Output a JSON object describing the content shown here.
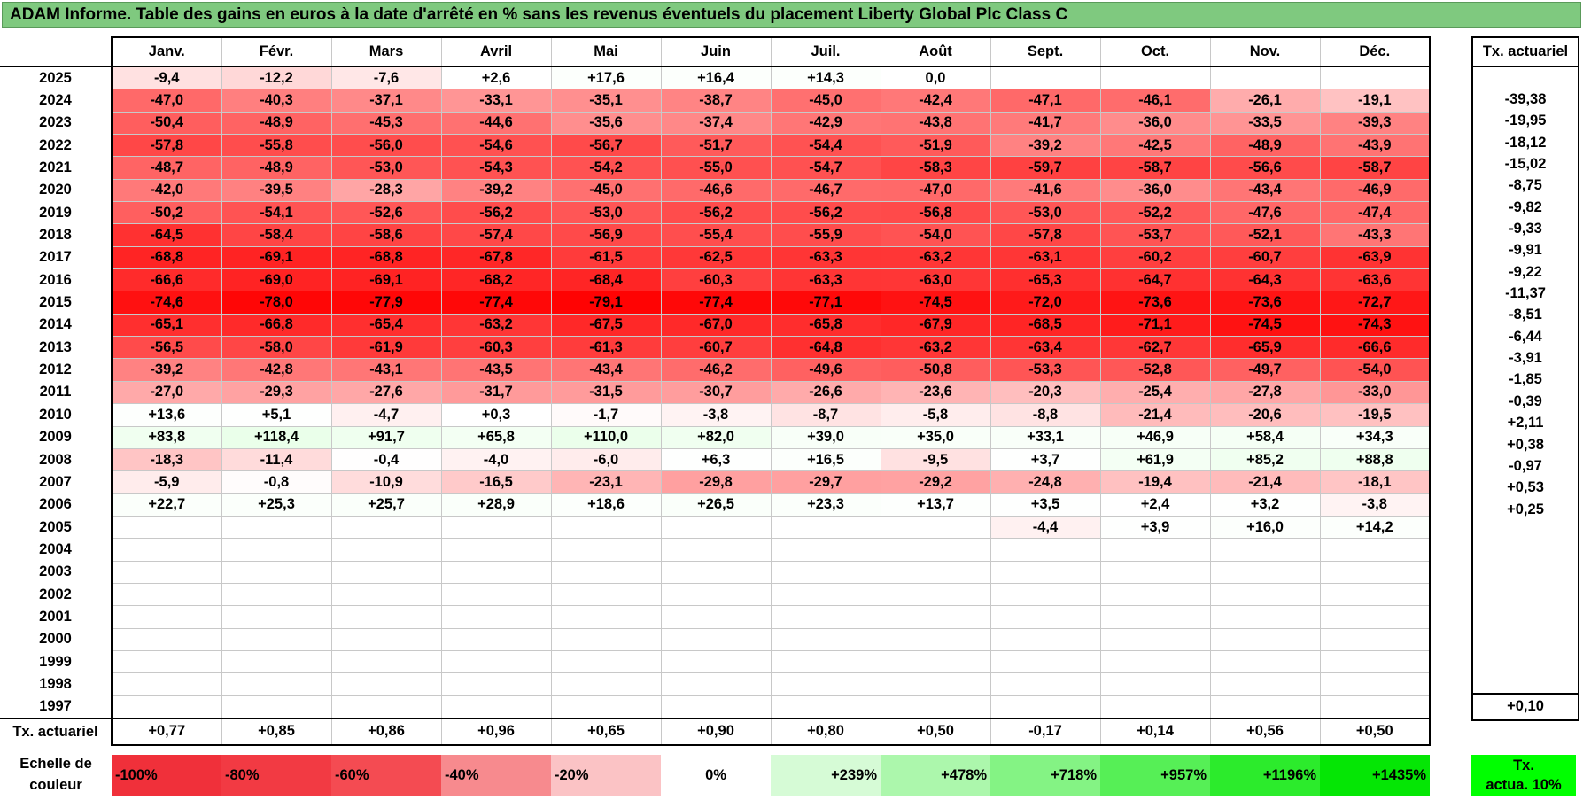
{
  "title": "ADAM Informe. Table des gains en euros à la date d'arrêté en % sans les revenus éventuels du placement Liberty Global Plc Class C",
  "months": [
    "Janv.",
    "Févr.",
    "Mars",
    "Avril",
    "Mai",
    "Juin",
    "Juil.",
    "Août",
    "Sept.",
    "Oct.",
    "Nov.",
    "Déc."
  ],
  "side_header": "Tx. actuariel",
  "rows": [
    {
      "year": "2025",
      "values": [
        "-9,4",
        "-12,2",
        "-7,6",
        "+2,6",
        "+17,6",
        "+16,4",
        "+14,3",
        "0,0",
        "",
        "",
        "",
        ""
      ],
      "tx": ""
    },
    {
      "year": "2024",
      "values": [
        "-47,0",
        "-40,3",
        "-37,1",
        "-33,1",
        "-35,1",
        "-38,7",
        "-45,0",
        "-42,4",
        "-47,1",
        "-46,1",
        "-26,1",
        "-19,1"
      ],
      "tx": "-39,38"
    },
    {
      "year": "2023",
      "values": [
        "-50,4",
        "-48,9",
        "-45,3",
        "-44,6",
        "-35,6",
        "-37,4",
        "-42,9",
        "-43,8",
        "-41,7",
        "-36,0",
        "-33,5",
        "-39,3"
      ],
      "tx": "-19,95"
    },
    {
      "year": "2022",
      "values": [
        "-57,8",
        "-55,8",
        "-56,0",
        "-54,6",
        "-56,7",
        "-51,7",
        "-54,4",
        "-51,9",
        "-39,2",
        "-42,5",
        "-48,9",
        "-43,9"
      ],
      "tx": "-18,12"
    },
    {
      "year": "2021",
      "values": [
        "-48,7",
        "-48,9",
        "-53,0",
        "-54,3",
        "-54,2",
        "-55,0",
        "-54,7",
        "-58,3",
        "-59,7",
        "-58,7",
        "-56,6",
        "-58,7"
      ],
      "tx": "-15,02"
    },
    {
      "year": "2020",
      "values": [
        "-42,0",
        "-39,5",
        "-28,3",
        "-39,2",
        "-45,0",
        "-46,6",
        "-46,7",
        "-47,0",
        "-41,6",
        "-36,0",
        "-43,4",
        "-46,9"
      ],
      "tx": "-8,75"
    },
    {
      "year": "2019",
      "values": [
        "-50,2",
        "-54,1",
        "-52,6",
        "-56,2",
        "-53,0",
        "-56,2",
        "-56,2",
        "-56,8",
        "-53,0",
        "-52,2",
        "-47,6",
        "-47,4"
      ],
      "tx": "-9,82"
    },
    {
      "year": "2018",
      "values": [
        "-64,5",
        "-58,4",
        "-58,6",
        "-57,4",
        "-56,9",
        "-55,4",
        "-55,9",
        "-54,0",
        "-57,8",
        "-53,7",
        "-52,1",
        "-43,3"
      ],
      "tx": "-9,33"
    },
    {
      "year": "2017",
      "values": [
        "-68,8",
        "-69,1",
        "-68,8",
        "-67,8",
        "-61,5",
        "-62,5",
        "-63,3",
        "-63,2",
        "-63,1",
        "-60,2",
        "-60,7",
        "-63,9"
      ],
      "tx": "-9,91"
    },
    {
      "year": "2016",
      "values": [
        "-66,6",
        "-69,0",
        "-69,1",
        "-68,2",
        "-68,4",
        "-60,3",
        "-63,3",
        "-63,0",
        "-65,3",
        "-64,7",
        "-64,3",
        "-63,6"
      ],
      "tx": "-9,22"
    },
    {
      "year": "2015",
      "values": [
        "-74,6",
        "-78,0",
        "-77,9",
        "-77,4",
        "-79,1",
        "-77,4",
        "-77,1",
        "-74,5",
        "-72,0",
        "-73,6",
        "-73,6",
        "-72,7"
      ],
      "tx": "-11,37"
    },
    {
      "year": "2014",
      "values": [
        "-65,1",
        "-66,8",
        "-65,4",
        "-63,2",
        "-67,5",
        "-67,0",
        "-65,8",
        "-67,9",
        "-68,5",
        "-71,1",
        "-74,5",
        "-74,3"
      ],
      "tx": "-8,51"
    },
    {
      "year": "2013",
      "values": [
        "-56,5",
        "-58,0",
        "-61,9",
        "-60,3",
        "-61,3",
        "-60,7",
        "-64,8",
        "-63,2",
        "-63,4",
        "-62,7",
        "-65,9",
        "-66,6"
      ],
      "tx": "-6,44"
    },
    {
      "year": "2012",
      "values": [
        "-39,2",
        "-42,8",
        "-43,1",
        "-43,5",
        "-43,4",
        "-46,2",
        "-49,6",
        "-50,8",
        "-53,3",
        "-52,8",
        "-49,7",
        "-54,0"
      ],
      "tx": "-3,91"
    },
    {
      "year": "2011",
      "values": [
        "-27,0",
        "-29,3",
        "-27,6",
        "-31,7",
        "-31,5",
        "-30,7",
        "-26,6",
        "-23,6",
        "-20,3",
        "-25,4",
        "-27,8",
        "-33,0"
      ],
      "tx": "-1,85"
    },
    {
      "year": "2010",
      "values": [
        "+13,6",
        "+5,1",
        "-4,7",
        "+0,3",
        "-1,7",
        "-3,8",
        "-8,7",
        "-5,8",
        "-8,8",
        "-21,4",
        "-20,6",
        "-19,5"
      ],
      "tx": "-0,39"
    },
    {
      "year": "2009",
      "values": [
        "+83,8",
        "+118,4",
        "+91,7",
        "+65,8",
        "+110,0",
        "+82,0",
        "+39,0",
        "+35,0",
        "+33,1",
        "+46,9",
        "+58,4",
        "+34,3"
      ],
      "tx": "+2,11"
    },
    {
      "year": "2008",
      "values": [
        "-18,3",
        "-11,4",
        "-0,4",
        "-4,0",
        "-6,0",
        "+6,3",
        "+16,5",
        "-9,5",
        "+3,7",
        "+61,9",
        "+85,2",
        "+88,8"
      ],
      "tx": "+0,38"
    },
    {
      "year": "2007",
      "values": [
        "-5,9",
        "-0,8",
        "-10,9",
        "-16,5",
        "-23,1",
        "-29,8",
        "-29,7",
        "-29,2",
        "-24,8",
        "-19,4",
        "-21,4",
        "-18,1"
      ],
      "tx": "-0,97"
    },
    {
      "year": "2006",
      "values": [
        "+22,7",
        "+25,3",
        "+25,7",
        "+28,9",
        "+18,6",
        "+26,5",
        "+23,3",
        "+13,7",
        "+3,5",
        "+2,4",
        "+3,2",
        "-3,8"
      ],
      "tx": "+0,53"
    },
    {
      "year": "2005",
      "values": [
        "",
        "",
        "",
        "",
        "",
        "",
        "",
        "",
        "-4,4",
        "+3,9",
        "+16,0",
        "+14,2"
      ],
      "tx": "+0,25"
    },
    {
      "year": "2004",
      "values": [
        "",
        "",
        "",
        "",
        "",
        "",
        "",
        "",
        "",
        "",
        "",
        ""
      ],
      "tx": ""
    },
    {
      "year": "2003",
      "values": [
        "",
        "",
        "",
        "",
        "",
        "",
        "",
        "",
        "",
        "",
        "",
        ""
      ],
      "tx": ""
    },
    {
      "year": "2002",
      "values": [
        "",
        "",
        "",
        "",
        "",
        "",
        "",
        "",
        "",
        "",
        "",
        ""
      ],
      "tx": ""
    },
    {
      "year": "2001",
      "values": [
        "",
        "",
        "",
        "",
        "",
        "",
        "",
        "",
        "",
        "",
        "",
        ""
      ],
      "tx": ""
    },
    {
      "year": "2000",
      "values": [
        "",
        "",
        "",
        "",
        "",
        "",
        "",
        "",
        "",
        "",
        "",
        ""
      ],
      "tx": ""
    },
    {
      "year": "1999",
      "values": [
        "",
        "",
        "",
        "",
        "",
        "",
        "",
        "",
        "",
        "",
        "",
        ""
      ],
      "tx": ""
    },
    {
      "year": "1998",
      "values": [
        "",
        "",
        "",
        "",
        "",
        "",
        "",
        "",
        "",
        "",
        "",
        ""
      ],
      "tx": ""
    },
    {
      "year": "1997",
      "values": [
        "",
        "",
        "",
        "",
        "",
        "",
        "",
        "",
        "",
        "",
        "",
        ""
      ],
      "tx": ""
    }
  ],
  "footer": {
    "label": "Tx. actuariel",
    "values": [
      "+0,77",
      "+0,85",
      "+0,86",
      "+0,96",
      "+0,65",
      "+0,90",
      "+0,80",
      "+0,50",
      "-0,17",
      "+0,14",
      "+0,56",
      "+0,50"
    ],
    "tx": "+0,10"
  },
  "legend": {
    "label_line1": "Echelle de",
    "label_line2": "couleur",
    "scale": [
      {
        "text": "-100%",
        "bg": "#f0303a",
        "align": "left"
      },
      {
        "text": "-80%",
        "bg": "#f23a43",
        "align": "left"
      },
      {
        "text": "-60%",
        "bg": "#f44b52",
        "align": "left"
      },
      {
        "text": "-40%",
        "bg": "#f78a8e",
        "align": "left"
      },
      {
        "text": "-20%",
        "bg": "#fbc3c5",
        "align": "left"
      },
      {
        "text": "0%",
        "bg": "#ffffff",
        "align": "center"
      },
      {
        "text": "+239%",
        "bg": "#d6fbd6",
        "align": "right"
      },
      {
        "text": "+478%",
        "bg": "#acf7ac",
        "align": "right"
      },
      {
        "text": "+718%",
        "bg": "#84f384",
        "align": "right"
      },
      {
        "text": "+957%",
        "bg": "#56ef56",
        "align": "right"
      },
      {
        "text": "+1196%",
        "bg": "#2ceb2c",
        "align": "right"
      },
      {
        "text": "+1435%",
        "bg": "#05e605",
        "align": "right"
      }
    ],
    "actua_line1": "Tx.",
    "actua_line2": "actua. 10%",
    "actua_bg": "#00ff00"
  }
}
